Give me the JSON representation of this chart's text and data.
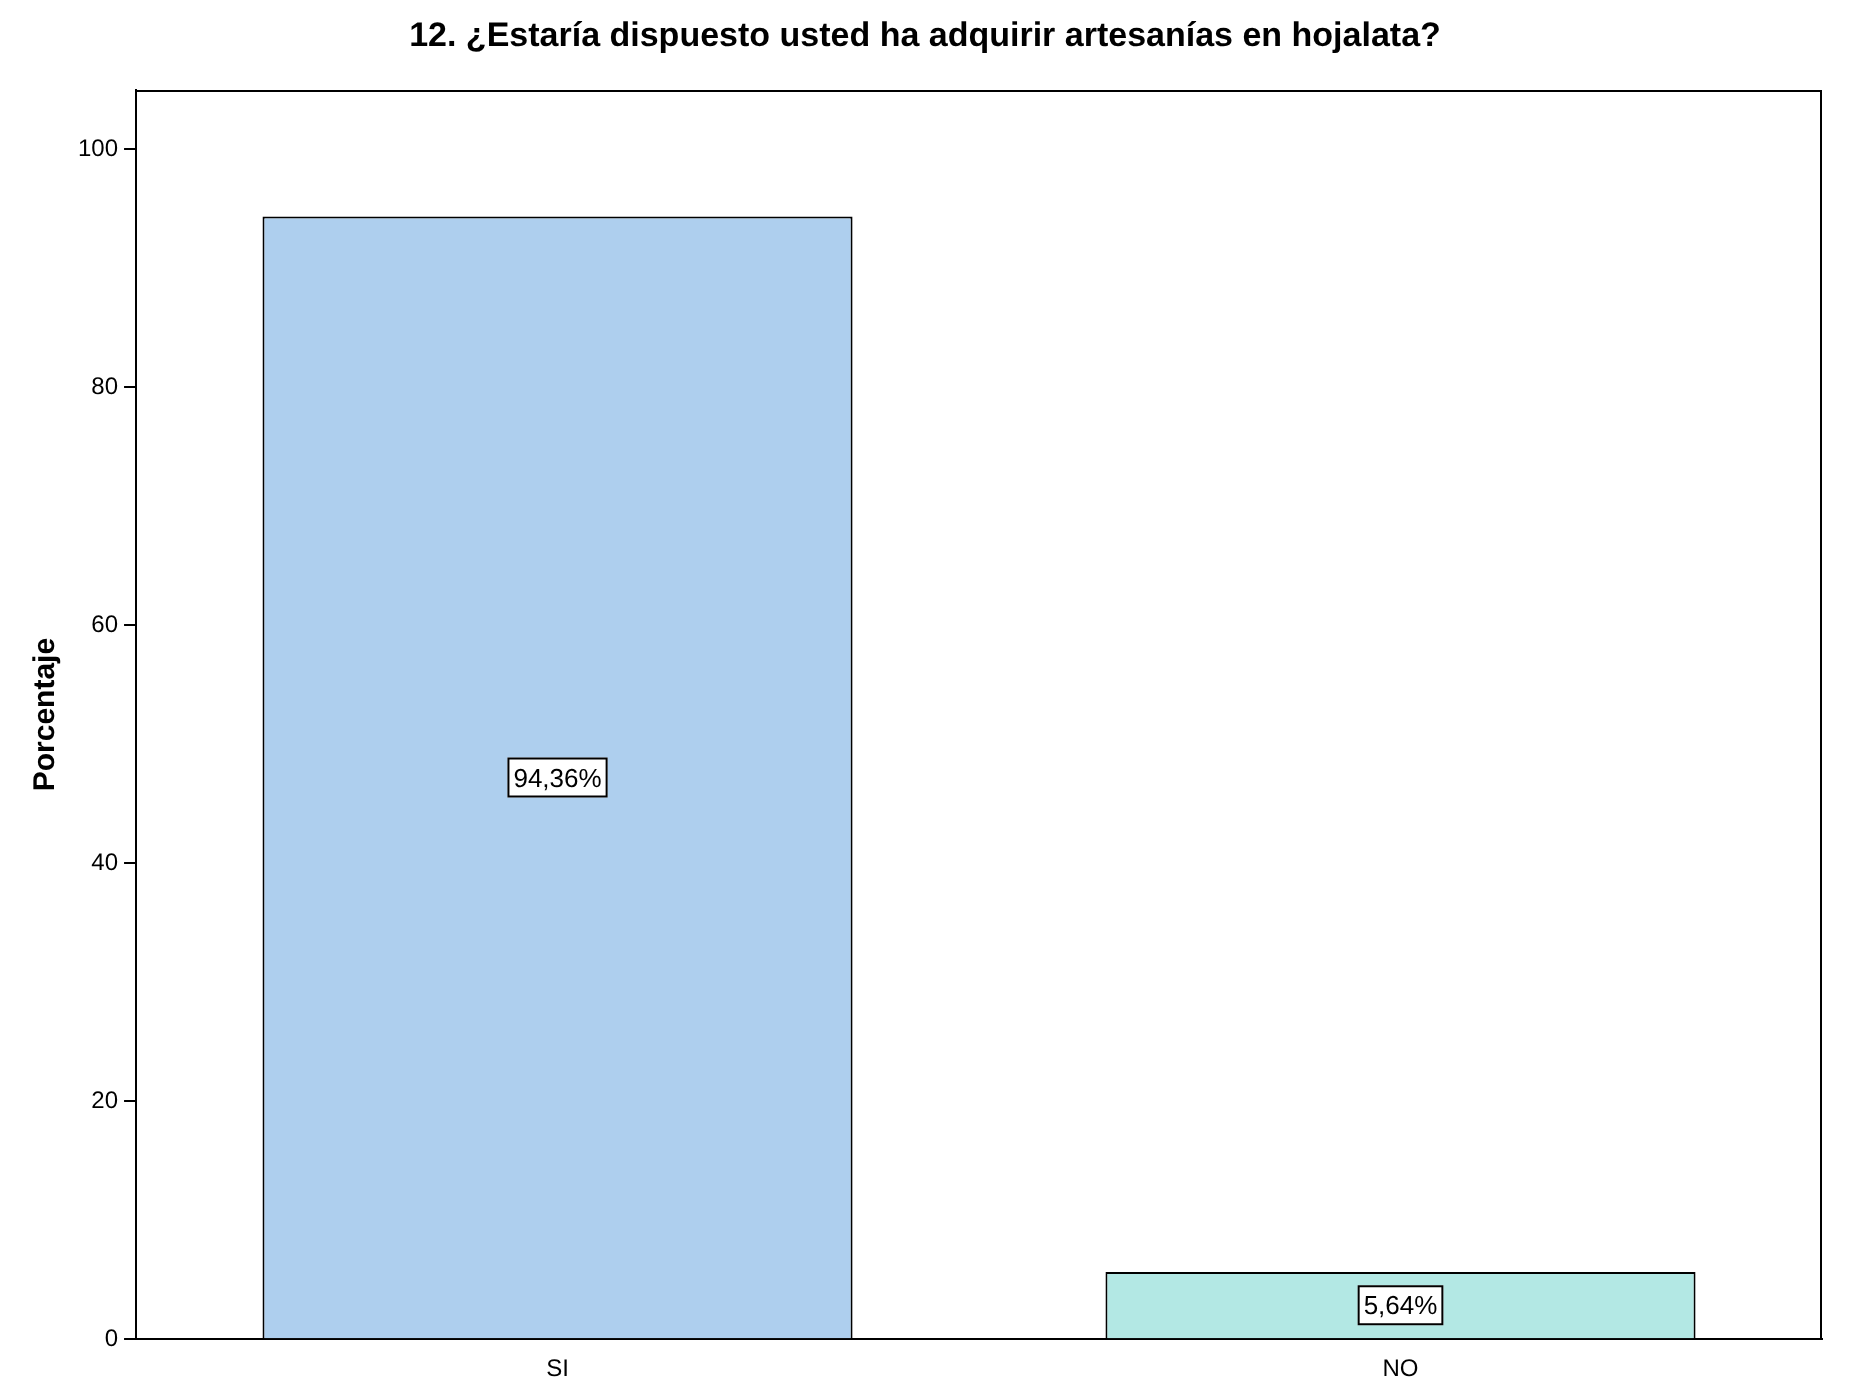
{
  "chart_data": {
    "type": "bar",
    "title": "12. ¿Estaría dispuesto usted ha adquirir artesanías en hojalata?",
    "ylabel": "Porcentaje",
    "categories": [
      "SI",
      "NO"
    ],
    "values": [
      94.36,
      5.64
    ],
    "colors": [
      "#aecfee",
      "#b3e8e4"
    ],
    "value_labels": [
      "94,36%",
      "5,64%"
    ],
    "ylim": [
      0,
      105
    ],
    "yticks": [
      0,
      20,
      40,
      60,
      80,
      100
    ],
    "grid": false,
    "legend": false
  }
}
